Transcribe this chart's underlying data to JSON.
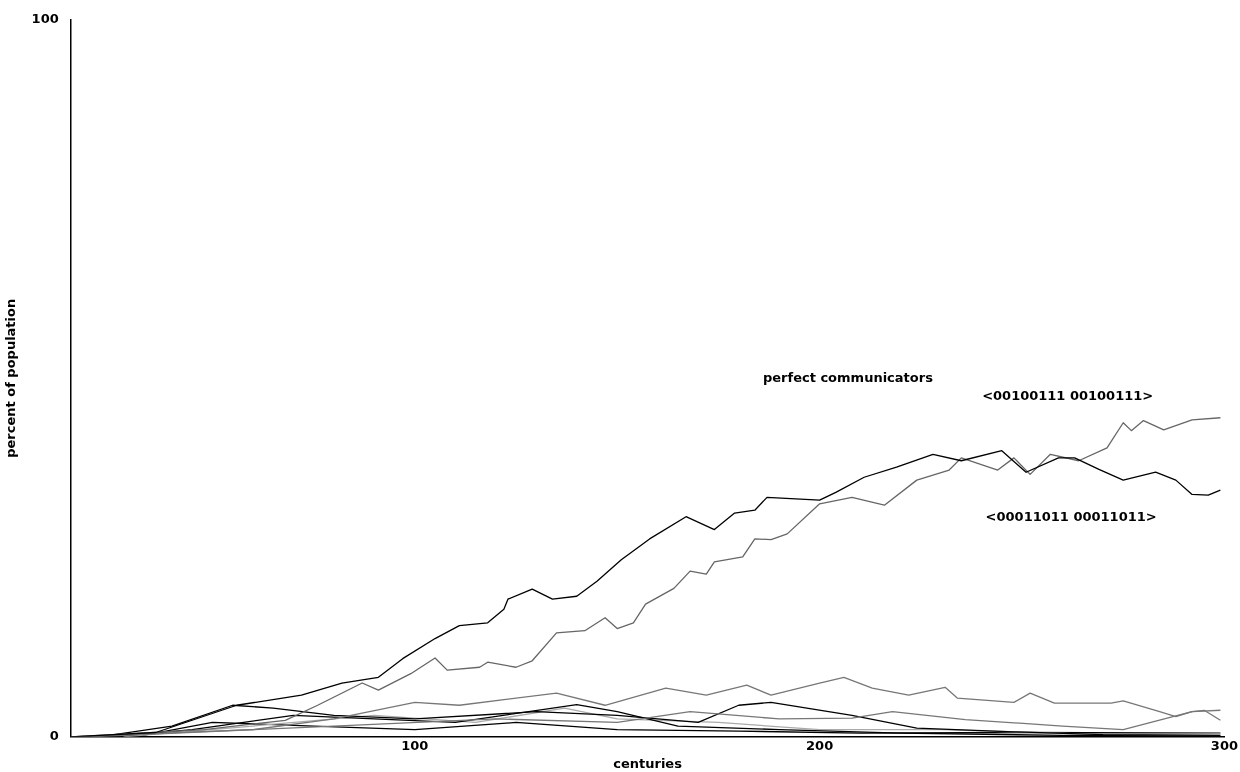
{
  "chart_data": {
    "type": "line",
    "xlabel": "centuries",
    "ylabel": "percent of population",
    "xlim": [
      15,
      300
    ],
    "xticks": [
      100,
      200,
      300
    ],
    "ylim": [
      0,
      100
    ],
    "yticks": [
      0,
      100
    ],
    "grid": false,
    "legend": false,
    "marker": "none",
    "line_style": "solid",
    "annotations": [
      "perfect communicators",
      "<00100111 00100111>",
      "<00011011 00011011>"
    ],
    "series": [
      {
        "color": "#000000",
        "x": [
          15,
          36,
          56,
          72,
          82,
          91,
          97,
          105,
          111,
          118,
          122,
          123,
          129,
          134,
          140,
          145,
          151,
          158,
          167,
          174,
          179,
          184,
          187,
          200,
          204,
          211,
          219,
          228,
          235,
          245,
          251,
          259,
          263,
          269,
          275,
          283,
          288,
          292,
          296,
          299
        ],
        "values": [
          0,
          0.6,
          4.4,
          5.8,
          7.5,
          8.3,
          10.9,
          13.7,
          15.5,
          15.9,
          17.8,
          19.2,
          20.6,
          19.2,
          19.6,
          21.7,
          24.7,
          27.6,
          30.7,
          28.9,
          31.2,
          31.6,
          33.4,
          33.0,
          34.1,
          36.2,
          37.6,
          39.4,
          38.5,
          39.9,
          36.9,
          38.9,
          38.9,
          37.3,
          35.8,
          36.9,
          35.8,
          33.8,
          33.7,
          34.4
        ]
      },
      {
        "color": "#666666",
        "x": [
          15,
          48,
          68,
          76,
          87,
          91,
          99,
          105,
          108,
          116,
          118,
          125,
          129,
          135,
          142,
          147,
          150,
          154,
          157,
          164,
          168,
          172,
          174,
          181,
          184,
          188,
          192,
          200,
          208,
          216,
          224,
          232,
          235,
          244,
          248,
          252,
          257,
          264,
          271,
          275,
          277,
          280,
          285,
          292,
          299
        ],
        "values": [
          0,
          1.0,
          2.3,
          4.4,
          7.5,
          6.5,
          8.8,
          11.0,
          9.3,
          9.7,
          10.4,
          9.7,
          10.6,
          14.5,
          14.8,
          16.6,
          15.1,
          15.9,
          18.5,
          20.7,
          23.1,
          22.7,
          24.4,
          25.1,
          27.6,
          27.5,
          28.3,
          32.5,
          33.4,
          32.3,
          35.8,
          37.2,
          38.9,
          37.2,
          38.9,
          36.6,
          39.4,
          38.5,
          40.3,
          43.8,
          42.7,
          44.1,
          42.8,
          44.2,
          44.5
        ]
      },
      {
        "color": "#777777",
        "x": [
          15,
          60,
          80,
          100,
          111,
          135,
          147,
          162,
          172,
          182,
          188,
          200,
          206,
          213,
          222,
          231,
          234,
          248,
          252,
          258,
          272,
          275,
          284,
          288,
          292,
          295,
          299
        ],
        "values": [
          0,
          1.0,
          2.5,
          4.8,
          4.4,
          6.1,
          4.4,
          6.8,
          5.8,
          7.2,
          5.8,
          7.5,
          8.3,
          6.8,
          5.8,
          6.9,
          5.4,
          4.8,
          6.1,
          4.7,
          4.7,
          5.0,
          3.5,
          2.8,
          3.5,
          3.7,
          2.3
        ]
      },
      {
        "color": "#777777",
        "x": [
          20,
          80,
          120,
          150,
          168,
          190,
          208,
          218,
          236,
          260,
          275,
          292,
          299
        ],
        "values": [
          0,
          1.5,
          2.5,
          2.0,
          3.5,
          2.5,
          2.6,
          3.5,
          2.4,
          1.5,
          1.0,
          3.5,
          3.7
        ]
      },
      {
        "color": "#000000",
        "x": [
          22,
          40,
          55,
          65,
          80,
          100,
          130,
          150,
          170,
          180,
          188,
          208,
          224,
          248,
          270,
          299
        ],
        "values": [
          0,
          1.5,
          4.4,
          4.0,
          3.0,
          2.5,
          3.5,
          3.0,
          2.0,
          4.4,
          4.8,
          3.0,
          1.2,
          0.7,
          0.3,
          0.2
        ]
      },
      {
        "color": "#000000",
        "x": [
          25,
          45,
          70,
          90,
          110,
          140,
          150,
          165,
          190,
          220,
          260,
          299
        ],
        "values": [
          0,
          1.0,
          3.0,
          2.5,
          2.0,
          4.5,
          3.5,
          1.5,
          1.0,
          0.5,
          0.2,
          0.1
        ]
      },
      {
        "color": "#aaaaaa",
        "x": [
          28,
          60,
          90,
          115,
          137,
          150,
          175,
          200,
          230,
          270,
          299
        ],
        "values": [
          0,
          1.5,
          3.0,
          2.0,
          4.0,
          2.5,
          2.0,
          1.0,
          1.0,
          0.3,
          0.4
        ]
      },
      {
        "color": "#000000",
        "x": [
          31,
          50,
          75,
          100,
          125,
          150,
          180,
          210,
          250,
          299
        ],
        "values": [
          0,
          2.0,
          1.5,
          1.0,
          2.0,
          1.0,
          0.8,
          0.5,
          0.6,
          0.5
        ]
      }
    ]
  }
}
